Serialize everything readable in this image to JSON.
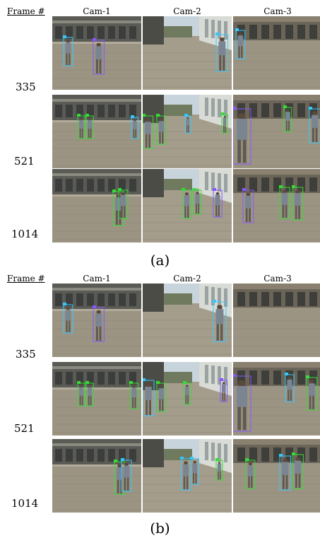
{
  "panels": [
    {
      "label": "(a)",
      "frame_header": "Frame #",
      "cameras": [
        "Cam-1",
        "Cam-2",
        "Cam-3"
      ],
      "frames": [
        "335",
        "521",
        "1014"
      ]
    },
    {
      "label": "(b)",
      "frame_header": "Frame #",
      "cameras": [
        "Cam-1",
        "Cam-2",
        "Cam-3"
      ],
      "frames": [
        "335",
        "521",
        "1014"
      ]
    }
  ],
  "colors": {
    "bbox_blue": "#3c4cff",
    "bbox_cyan": "#33c8ff",
    "bbox_green": "#33dd33",
    "bbox_purple": "#8855ff",
    "plaza": "#9c9483",
    "building": "#5b5b55",
    "sky": "#c8d4dc"
  }
}
